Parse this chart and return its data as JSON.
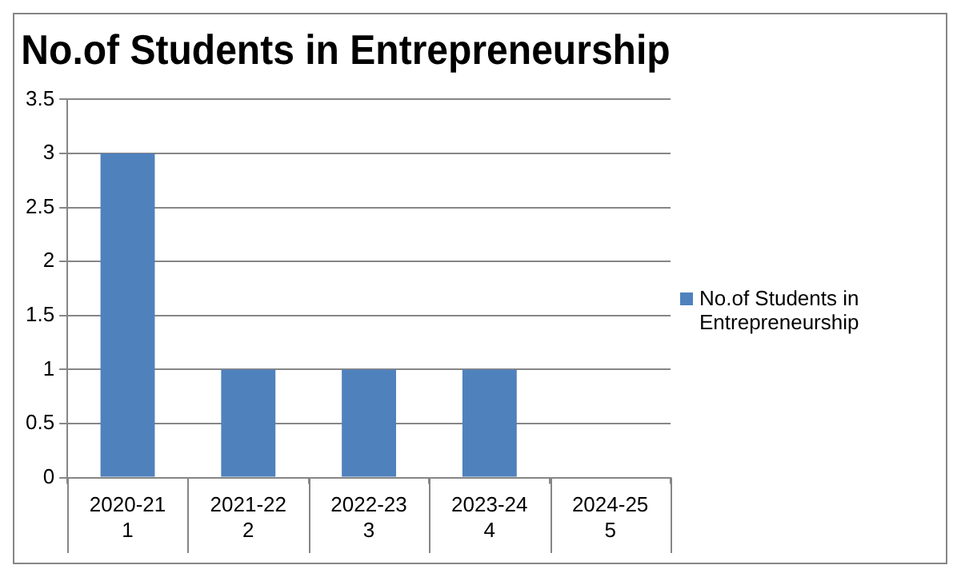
{
  "chart_data": {
    "type": "bar",
    "title": "No.of Students in Entrepreneurship",
    "categories": [
      "2020-21\n1",
      "2021-22\n2",
      "2022-23\n3",
      "2023-24\n4",
      "2024-25\n5"
    ],
    "series": [
      {
        "name": "No.of Students in Entrepreneurship",
        "color": "#4f81bd",
        "values": [
          3,
          1,
          1,
          1,
          0
        ]
      }
    ],
    "ylim": [
      0,
      3.5
    ],
    "yticks": [
      0,
      0.5,
      1,
      1.5,
      2,
      2.5,
      3,
      3.5
    ],
    "grid": "y",
    "legend": "right"
  }
}
